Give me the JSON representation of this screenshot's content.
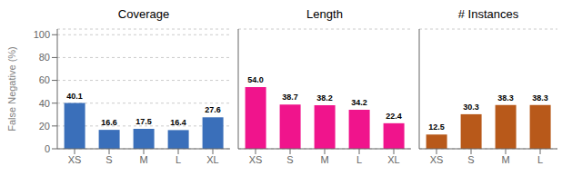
{
  "chart_data": [
    {
      "type": "bar",
      "title": "Coverage",
      "categories": [
        "XS",
        "S",
        "M",
        "L",
        "XL"
      ],
      "values": [
        40.1,
        16.6,
        17.5,
        16.4,
        27.6
      ],
      "color": "#3a6fba",
      "ylabel": "False Negative (%)",
      "ylim": [
        0,
        105
      ],
      "yticks": [
        0,
        20,
        40,
        60,
        80,
        100
      ],
      "grid": true,
      "data_labels": true
    },
    {
      "type": "bar",
      "title": "Length",
      "categories": [
        "XS",
        "S",
        "M",
        "L",
        "XL"
      ],
      "values": [
        54.0,
        38.7,
        38.2,
        34.2,
        22.4
      ],
      "value_labels": [
        "54.0",
        "38.7",
        "38.2",
        "34.2",
        "22.4"
      ],
      "color": "#f0148c",
      "ylim": [
        0,
        105
      ],
      "yticks": [
        0,
        20,
        40,
        60,
        80,
        100
      ],
      "grid": true,
      "data_labels": true,
      "tick_labels": "x"
    },
    {
      "type": "bar",
      "title": "# Instances",
      "categories": [
        "XS",
        "S",
        "M",
        "L"
      ],
      "values": [
        12.5,
        30.3,
        38.3,
        38.3
      ],
      "color": "#b8591a",
      "ylim": [
        0,
        105
      ],
      "yticks": [
        0,
        20,
        40,
        60,
        80,
        100
      ],
      "grid": true,
      "data_labels": true,
      "tick_labels": "x"
    }
  ]
}
